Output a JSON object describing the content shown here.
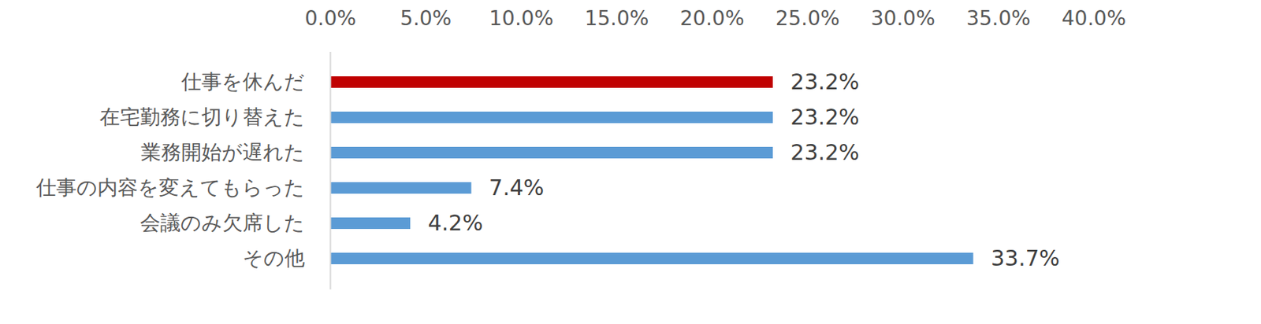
{
  "chart_data": {
    "type": "bar",
    "orientation": "horizontal",
    "categories": [
      "仕事を休んだ",
      "在宅勤務に切り替えた",
      "業務開始が遅れた",
      "仕事の内容を変えてもらった",
      "会議のみ欠席した",
      "その他"
    ],
    "values": [
      23.2,
      23.2,
      23.2,
      7.4,
      4.2,
      33.7
    ],
    "value_labels": [
      "23.2%",
      "23.2%",
      "23.2%",
      "7.4%",
      "4.2%",
      "33.7%"
    ],
    "colors": [
      "#c00000",
      "#5b9bd5",
      "#5b9bd5",
      "#5b9bd5",
      "#5b9bd5",
      "#5b9bd5"
    ],
    "xlim": [
      0,
      40
    ],
    "xticks": [
      {
        "value": 0,
        "label": "0.0%"
      },
      {
        "value": 5,
        "label": "5.0%"
      },
      {
        "value": 10,
        "label": "10.0%"
      },
      {
        "value": 15,
        "label": "15.0%"
      },
      {
        "value": 20,
        "label": "20.0%"
      },
      {
        "value": 25,
        "label": "25.0%"
      },
      {
        "value": 30,
        "label": "30.0%"
      },
      {
        "value": 35,
        "label": "35.0%"
      },
      {
        "value": 40,
        "label": "40.0%"
      }
    ],
    "grid": false,
    "data_labels": true
  }
}
